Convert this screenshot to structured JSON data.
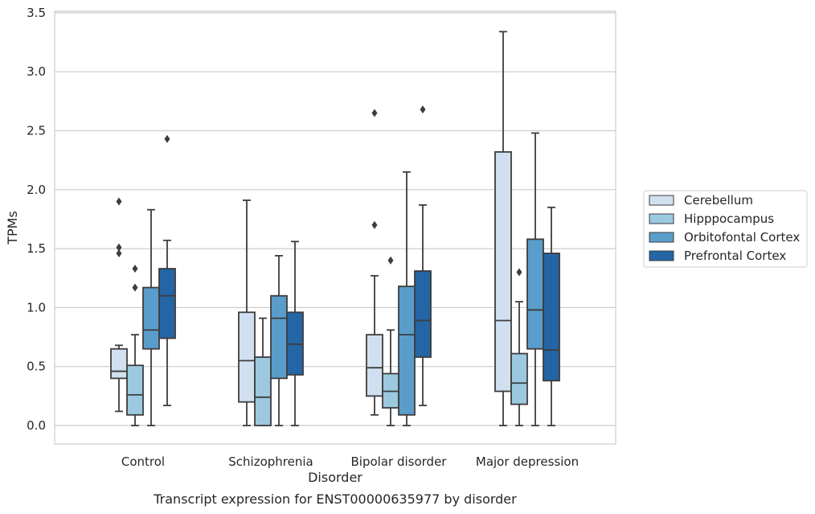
{
  "caption": "Transcript expression for ENST00000635977 by disorder",
  "chart_data": {
    "type": "box",
    "xlabel": "Disorder",
    "ylabel": "TPMs",
    "ylim": [
      -0.15,
      3.52
    ],
    "yticks": [
      "0.0",
      "0.5",
      "1.0",
      "1.5",
      "2.0",
      "2.5",
      "3.0",
      "3.5"
    ],
    "grid": "horizontal",
    "legend_position": "right",
    "categories": [
      "Control",
      "Schizophrenia",
      "Bipolar disorder",
      "Major depression"
    ],
    "series": [
      {
        "name": "Cerebellum",
        "color": "#d1e0f1",
        "boxes": [
          {
            "whisker_low": 0.12,
            "q1": 0.4,
            "median": 0.46,
            "q3": 0.65,
            "whisker_high": 0.68,
            "outliers": [
              1.9,
              1.51,
              1.46
            ]
          },
          {
            "whisker_low": 0.0,
            "q1": 0.2,
            "median": 0.55,
            "q3": 0.96,
            "whisker_high": 1.91,
            "outliers": []
          },
          {
            "whisker_low": 0.09,
            "q1": 0.25,
            "median": 0.49,
            "q3": 0.77,
            "whisker_high": 1.27,
            "outliers": [
              2.65,
              1.7
            ]
          },
          {
            "whisker_low": 0.0,
            "q1": 0.29,
            "median": 0.89,
            "q3": 2.32,
            "whisker_high": 3.34,
            "outliers": []
          }
        ]
      },
      {
        "name": "Hipppocampus",
        "color": "#9cc9e0",
        "boxes": [
          {
            "whisker_low": 0.0,
            "q1": 0.09,
            "median": 0.26,
            "q3": 0.51,
            "whisker_high": 0.77,
            "outliers": [
              1.33,
              1.17
            ]
          },
          {
            "whisker_low": 0.0,
            "q1": 0.0,
            "median": 0.24,
            "q3": 0.58,
            "whisker_high": 0.91,
            "outliers": []
          },
          {
            "whisker_low": 0.0,
            "q1": 0.15,
            "median": 0.29,
            "q3": 0.44,
            "whisker_high": 0.81,
            "outliers": [
              1.4
            ]
          },
          {
            "whisker_low": 0.0,
            "q1": 0.18,
            "median": 0.36,
            "q3": 0.61,
            "whisker_high": 1.05,
            "outliers": [
              1.3
            ]
          }
        ]
      },
      {
        "name": "Orbitofontal Cortex",
        "color": "#5a9dcb",
        "boxes": [
          {
            "whisker_low": 0.0,
            "q1": 0.65,
            "median": 0.81,
            "q3": 1.17,
            "whisker_high": 1.83,
            "outliers": []
          },
          {
            "whisker_low": 0.0,
            "q1": 0.4,
            "median": 0.91,
            "q3": 1.1,
            "whisker_high": 1.44,
            "outliers": []
          },
          {
            "whisker_low": 0.0,
            "q1": 0.09,
            "median": 0.77,
            "q3": 1.18,
            "whisker_high": 2.15,
            "outliers": []
          },
          {
            "whisker_low": 0.0,
            "q1": 0.65,
            "median": 0.98,
            "q3": 1.58,
            "whisker_high": 2.48,
            "outliers": []
          }
        ]
      },
      {
        "name": "Prefrontal Cortex",
        "color": "#2465a5",
        "boxes": [
          {
            "whisker_low": 0.17,
            "q1": 0.74,
            "median": 1.1,
            "q3": 1.33,
            "whisker_high": 1.57,
            "outliers": [
              2.43
            ]
          },
          {
            "whisker_low": 0.0,
            "q1": 0.43,
            "median": 0.69,
            "q3": 0.96,
            "whisker_high": 1.56,
            "outliers": []
          },
          {
            "whisker_low": 0.17,
            "q1": 0.58,
            "median": 0.89,
            "q3": 1.31,
            "whisker_high": 1.87,
            "outliers": [
              2.68
            ]
          },
          {
            "whisker_low": 0.0,
            "q1": 0.38,
            "median": 0.64,
            "q3": 1.46,
            "whisker_high": 1.85,
            "outliers": []
          }
        ]
      }
    ]
  }
}
